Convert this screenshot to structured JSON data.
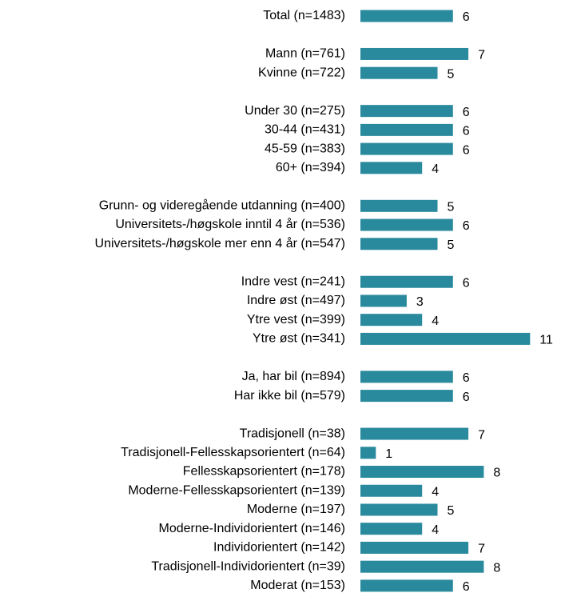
{
  "chart_data": {
    "type": "bar",
    "orientation": "horizontal",
    "color": "#2a8a9d",
    "categories": [
      "Total (n=1483)",
      null,
      "Mann (n=761)",
      "Kvinne (n=722)",
      null,
      "Under 30 (n=275)",
      "30-44 (n=431)",
      "45-59 (n=383)",
      "60+ (n=394)",
      null,
      "Grunn- og videregående utdanning (n=400)",
      "Universitets-/høgskole inntil 4 år (n=536)",
      "Universitets-/høgskole mer enn 4 år (n=547)",
      null,
      "Indre vest (n=241)",
      "Indre øst (n=497)",
      "Ytre vest (n=399)",
      "Ytre øst (n=341)",
      null,
      "Ja, har bil (n=894)",
      "Har ikke bil (n=579)",
      null,
      "Tradisjonell (n=38)",
      "Tradisjonell-Fellesskapsorientert (n=64)",
      "Fellesskapsorientert (n=178)",
      "Moderne-Fellesskapsorientert (n=139)",
      "Moderne (n=197)",
      "Moderne-Individorientert (n=146)",
      "Individorientert (n=142)",
      "Tradisjonell-Individorientert (n=39)",
      "Moderat (n=153)"
    ],
    "values": [
      6,
      null,
      7,
      5,
      null,
      6,
      6,
      6,
      4,
      null,
      5,
      6,
      5,
      null,
      6,
      3,
      4,
      11,
      null,
      6,
      6,
      null,
      7,
      1,
      8,
      4,
      5,
      4,
      7,
      8,
      6
    ]
  }
}
